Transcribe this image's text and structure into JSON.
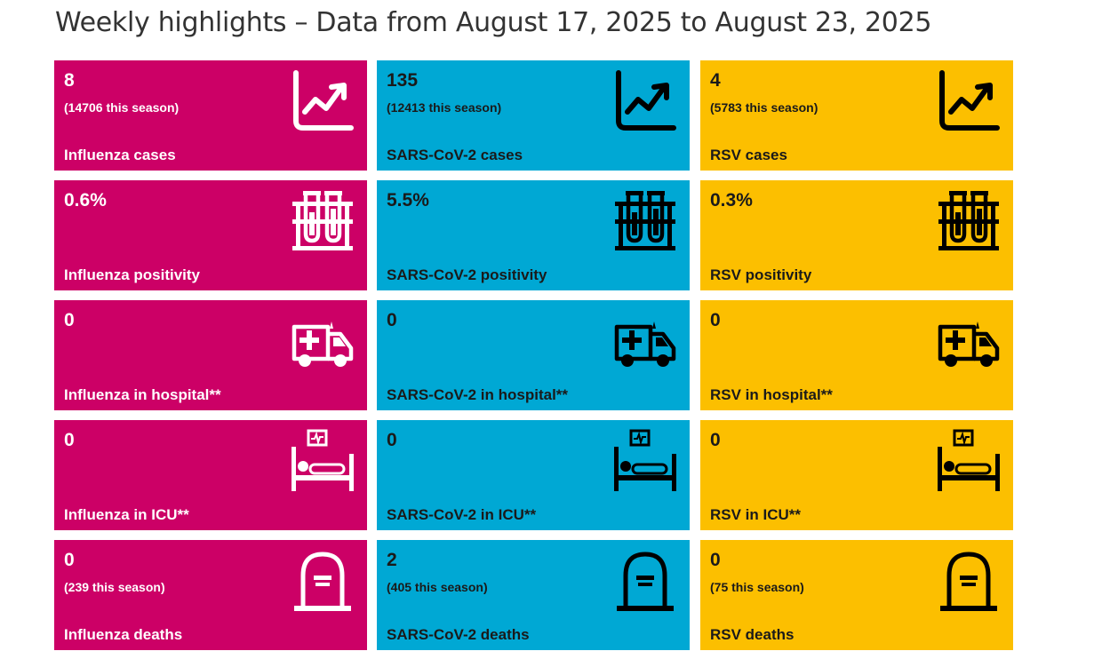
{
  "title": "Weekly highlights – Data from August 17, 2025 to August 23, 2025",
  "colors": {
    "influenza": "#cc0066",
    "sarscov2": "#00a8d4",
    "rsv": "#fcbf00"
  },
  "cards": {
    "flu_cases": {
      "value": "8",
      "season": "(14706 this season)",
      "label": "Influenza cases",
      "icon": "chart-trend-icon"
    },
    "cov_cases": {
      "value": "135",
      "season": "(12413 this season)",
      "label": "SARS-CoV-2 cases",
      "icon": "chart-trend-icon"
    },
    "rsv_cases": {
      "value": "4",
      "season": "(5783 this season)",
      "label": "RSV cases",
      "icon": "chart-trend-icon"
    },
    "flu_pos": {
      "value": "0.6%",
      "label": "Influenza positivity",
      "icon": "test-tubes-icon"
    },
    "cov_pos": {
      "value": "5.5%",
      "label": "SARS-CoV-2 positivity",
      "icon": "test-tubes-icon"
    },
    "rsv_pos": {
      "value": "0.3%",
      "label": "RSV positivity",
      "icon": "test-tubes-icon"
    },
    "flu_hosp": {
      "value": "0",
      "label": "Influenza in hospital**",
      "icon": "ambulance-icon"
    },
    "cov_hosp": {
      "value": "0",
      "label": "SARS-CoV-2 in hospital**",
      "icon": "ambulance-icon"
    },
    "rsv_hosp": {
      "value": "0",
      "label": "RSV in hospital**",
      "icon": "ambulance-icon"
    },
    "flu_icu": {
      "value": "0",
      "label": "Influenza in ICU**",
      "icon": "icu-bed-icon"
    },
    "cov_icu": {
      "value": "0",
      "label": "SARS-CoV-2 in ICU**",
      "icon": "icu-bed-icon"
    },
    "rsv_icu": {
      "value": "0",
      "label": "RSV in ICU**",
      "icon": "icu-bed-icon"
    },
    "flu_deaths": {
      "value": "0",
      "season": "(239 this season)",
      "label": "Influenza deaths",
      "icon": "tombstone-icon"
    },
    "cov_deaths": {
      "value": "2",
      "season": "(405 this season)",
      "label": "SARS-CoV-2 deaths",
      "icon": "tombstone-icon"
    },
    "rsv_deaths": {
      "value": "0",
      "season": "(75 this season)",
      "label": "RSV deaths",
      "icon": "tombstone-icon"
    }
  }
}
